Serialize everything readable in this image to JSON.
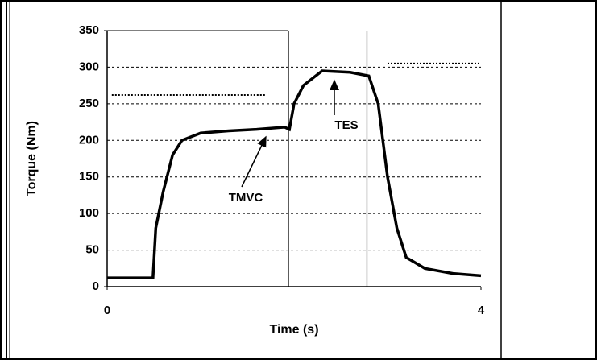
{
  "chart_data": {
    "type": "line",
    "xlabel": "Time (s)",
    "ylabel": "Torque (Nm)",
    "xlim": [
      0,
      4
    ],
    "xticks": [
      0,
      4
    ],
    "ylim": [
      0,
      350
    ],
    "yticks": [
      0,
      50,
      100,
      150,
      200,
      250,
      300,
      350
    ],
    "grid": true,
    "vlines": [
      1.94,
      2.78
    ],
    "series": [
      {
        "color": "#000000",
        "style": "solid",
        "x": [
          0,
          0.49,
          0.52,
          0.6,
          0.7,
          0.8,
          1.0,
          1.3,
          1.6,
          1.9,
          1.95,
          2.0,
          2.1,
          2.3,
          2.6,
          2.8,
          2.9,
          3.0,
          3.1,
          3.2,
          3.4,
          3.7,
          4.0
        ],
        "values": [
          12,
          12,
          80,
          130,
          180,
          200,
          210,
          213,
          215,
          218,
          215,
          250,
          275,
          295,
          293,
          288,
          250,
          150,
          80,
          40,
          25,
          18,
          15
        ]
      },
      {
        "color": "#000000",
        "style": "dotted",
        "x": [
          0.05,
          1.7
        ],
        "values": [
          262,
          262
        ]
      },
      {
        "color": "#000000",
        "style": "dotted",
        "x": [
          3.0,
          4.0
        ],
        "values": [
          305,
          305
        ]
      }
    ],
    "annotations": [
      {
        "text": "TMVC"
      },
      {
        "text": "TES"
      }
    ]
  }
}
